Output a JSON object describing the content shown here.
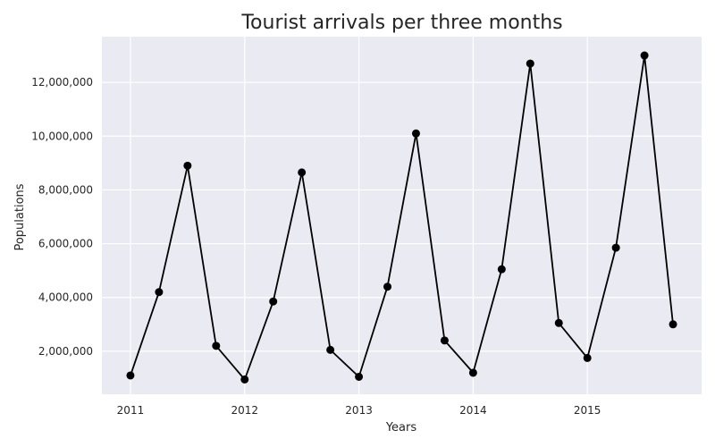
{
  "chart_data": {
    "type": "line",
    "title": "Tourist arrivals per three months",
    "xlabel": "Years",
    "ylabel": "Populations",
    "x_ticks": [
      "2011",
      "2012",
      "2013",
      "2014",
      "2015"
    ],
    "y_ticks": [
      "2,000,000",
      "4,000,000",
      "6,000,000",
      "8,000,000",
      "10,000,000",
      "12,000,000"
    ],
    "x_tick_values": [
      2011,
      2012,
      2013,
      2014,
      2015
    ],
    "y_tick_values": [
      2000000,
      4000000,
      6000000,
      8000000,
      10000000,
      12000000
    ],
    "xlim": [
      2010.75,
      2016.0
    ],
    "ylim": [
      400000,
      13700000
    ],
    "grid": true,
    "style": "seaborn-dark",
    "colors": {
      "background": "#eaeaf2",
      "grid": "#ffffff",
      "line": "#000000"
    },
    "series": [
      {
        "marker": "circle",
        "x": [
          2011.0,
          2011.25,
          2011.5,
          2011.75,
          2012.0,
          2012.25,
          2012.5,
          2012.75,
          2013.0,
          2013.25,
          2013.5,
          2013.75,
          2014.0,
          2014.25,
          2014.5,
          2014.75,
          2015.0,
          2015.25,
          2015.5,
          2015.75
        ],
        "values": [
          1100000,
          4200000,
          8900000,
          2200000,
          950000,
          3850000,
          8650000,
          2050000,
          1050000,
          4400000,
          10100000,
          2400000,
          1200000,
          5050000,
          12700000,
          3050000,
          1750000,
          5850000,
          13000000,
          3000000
        ]
      }
    ]
  }
}
